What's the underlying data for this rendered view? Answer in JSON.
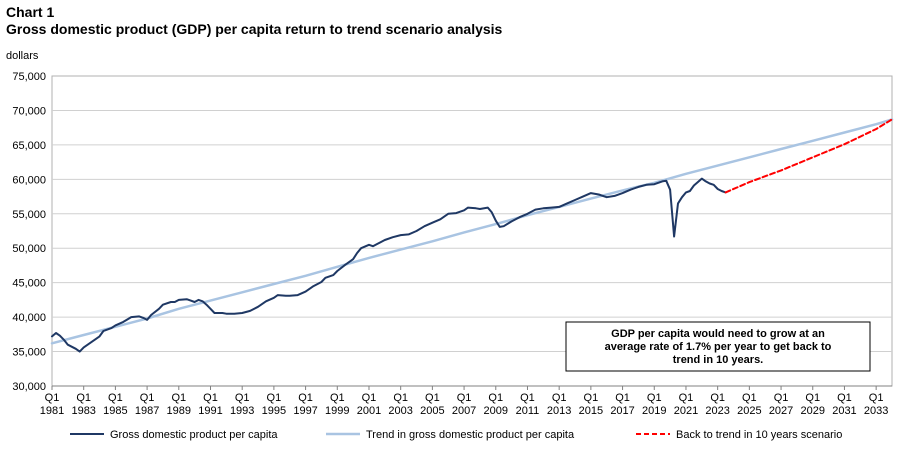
{
  "chart_data": {
    "type": "line",
    "chart_number": "Chart 1",
    "title": "Gross domestic product (GDP) per capita return to trend scenario analysis",
    "ylabel": "dollars",
    "ylim": [
      30000,
      75000
    ],
    "y_ticks": [
      "30,000",
      "35,000",
      "40,000",
      "45,000",
      "50,000",
      "55,000",
      "60,000",
      "65,000",
      "70,000",
      "75,000"
    ],
    "y_tick_values": [
      30000,
      35000,
      40000,
      45000,
      50000,
      55000,
      60000,
      65000,
      70000,
      75000
    ],
    "xlim": [
      1981.0,
      2034.0
    ],
    "x_ticks": [
      {
        "q": "Q1",
        "year": "1981",
        "x": 1981
      },
      {
        "q": "Q1",
        "year": "1983",
        "x": 1983
      },
      {
        "q": "Q1",
        "year": "1985",
        "x": 1985
      },
      {
        "q": "Q1",
        "year": "1987",
        "x": 1987
      },
      {
        "q": "Q1",
        "year": "1989",
        "x": 1989
      },
      {
        "q": "Q1",
        "year": "1991",
        "x": 1991
      },
      {
        "q": "Q1",
        "year": "1993",
        "x": 1993
      },
      {
        "q": "Q1",
        "year": "1995",
        "x": 1995
      },
      {
        "q": "Q1",
        "year": "1997",
        "x": 1997
      },
      {
        "q": "Q1",
        "year": "1999",
        "x": 1999
      },
      {
        "q": "Q1",
        "year": "2001",
        "x": 2001
      },
      {
        "q": "Q1",
        "year": "2003",
        "x": 2003
      },
      {
        "q": "Q1",
        "year": "2005",
        "x": 2005
      },
      {
        "q": "Q1",
        "year": "2007",
        "x": 2007
      },
      {
        "q": "Q1",
        "year": "2009",
        "x": 2009
      },
      {
        "q": "Q1",
        "year": "2011",
        "x": 2011
      },
      {
        "q": "Q1",
        "year": "2013",
        "x": 2013
      },
      {
        "q": "Q1",
        "year": "2015",
        "x": 2015
      },
      {
        "q": "Q1",
        "year": "2017",
        "x": 2017
      },
      {
        "q": "Q1",
        "year": "2019",
        "x": 2019
      },
      {
        "q": "Q1",
        "year": "2021",
        "x": 2021
      },
      {
        "q": "Q1",
        "year": "2023",
        "x": 2023
      },
      {
        "q": "Q1",
        "year": "2025",
        "x": 2025
      },
      {
        "q": "Q1",
        "year": "2027",
        "x": 2027
      },
      {
        "q": "Q1",
        "year": "2029",
        "x": 2029
      },
      {
        "q": "Q1",
        "year": "2031",
        "x": 2031
      },
      {
        "q": "Q1",
        "year": "2033",
        "x": 2033
      }
    ],
    "series": [
      {
        "name": "Gross domestic product per capita",
        "color": "#1f3864",
        "style": "solid",
        "points": [
          [
            1981.0,
            37200
          ],
          [
            1981.25,
            37700
          ],
          [
            1981.5,
            37300
          ],
          [
            1981.75,
            36700
          ],
          [
            1982.0,
            36000
          ],
          [
            1982.5,
            35400
          ],
          [
            1982.75,
            35000
          ],
          [
            1983.0,
            35600
          ],
          [
            1983.5,
            36400
          ],
          [
            1984.0,
            37200
          ],
          [
            1984.25,
            38000
          ],
          [
            1984.75,
            38400
          ],
          [
            1985.0,
            38800
          ],
          [
            1985.5,
            39300
          ],
          [
            1986.0,
            40000
          ],
          [
            1986.5,
            40100
          ],
          [
            1986.75,
            39900
          ],
          [
            1987.0,
            39600
          ],
          [
            1987.25,
            40300
          ],
          [
            1987.75,
            41200
          ],
          [
            1988.0,
            41800
          ],
          [
            1988.5,
            42200
          ],
          [
            1988.75,
            42200
          ],
          [
            1989.0,
            42500
          ],
          [
            1989.5,
            42600
          ],
          [
            1989.75,
            42400
          ],
          [
            1990.0,
            42200
          ],
          [
            1990.25,
            42500
          ],
          [
            1990.5,
            42300
          ],
          [
            1990.75,
            41800
          ],
          [
            1991.0,
            41200
          ],
          [
            1991.25,
            40600
          ],
          [
            1991.75,
            40600
          ],
          [
            1992.0,
            40500
          ],
          [
            1992.5,
            40500
          ],
          [
            1993.0,
            40600
          ],
          [
            1993.5,
            40900
          ],
          [
            1994.0,
            41500
          ],
          [
            1994.5,
            42300
          ],
          [
            1995.0,
            42800
          ],
          [
            1995.25,
            43200
          ],
          [
            1995.75,
            43100
          ],
          [
            1996.0,
            43100
          ],
          [
            1996.5,
            43200
          ],
          [
            1997.0,
            43700
          ],
          [
            1997.5,
            44500
          ],
          [
            1998.0,
            45100
          ],
          [
            1998.25,
            45700
          ],
          [
            1998.75,
            46100
          ],
          [
            1999.0,
            46700
          ],
          [
            1999.5,
            47600
          ],
          [
            2000.0,
            48400
          ],
          [
            2000.25,
            49300
          ],
          [
            2000.5,
            50000
          ],
          [
            2001.0,
            50500
          ],
          [
            2001.25,
            50300
          ],
          [
            2001.5,
            50600
          ],
          [
            2002.0,
            51200
          ],
          [
            2002.5,
            51600
          ],
          [
            2003.0,
            51900
          ],
          [
            2003.5,
            52000
          ],
          [
            2004.0,
            52500
          ],
          [
            2004.5,
            53200
          ],
          [
            2005.0,
            53700
          ],
          [
            2005.5,
            54200
          ],
          [
            2006.0,
            55000
          ],
          [
            2006.5,
            55100
          ],
          [
            2007.0,
            55500
          ],
          [
            2007.25,
            55900
          ],
          [
            2007.75,
            55800
          ],
          [
            2008.0,
            55700
          ],
          [
            2008.5,
            55900
          ],
          [
            2008.75,
            55200
          ],
          [
            2009.0,
            54000
          ],
          [
            2009.25,
            53100
          ],
          [
            2009.5,
            53200
          ],
          [
            2010.0,
            53900
          ],
          [
            2010.5,
            54500
          ],
          [
            2011.0,
            55000
          ],
          [
            2011.5,
            55600
          ],
          [
            2012.0,
            55800
          ],
          [
            2012.5,
            55900
          ],
          [
            2013.0,
            56000
          ],
          [
            2013.5,
            56500
          ],
          [
            2014.0,
            57000
          ],
          [
            2014.5,
            57500
          ],
          [
            2015.0,
            58000
          ],
          [
            2015.5,
            57800
          ],
          [
            2016.0,
            57400
          ],
          [
            2016.5,
            57600
          ],
          [
            2017.0,
            58000
          ],
          [
            2017.5,
            58500
          ],
          [
            2018.0,
            58900
          ],
          [
            2018.5,
            59200
          ],
          [
            2019.0,
            59300
          ],
          [
            2019.5,
            59700
          ],
          [
            2019.75,
            59800
          ],
          [
            2020.0,
            58500
          ],
          [
            2020.25,
            51700
          ],
          [
            2020.5,
            56500
          ],
          [
            2020.75,
            57400
          ],
          [
            2021.0,
            58100
          ],
          [
            2021.25,
            58300
          ],
          [
            2021.5,
            59100
          ],
          [
            2021.75,
            59600
          ],
          [
            2022.0,
            60100
          ],
          [
            2022.25,
            59700
          ],
          [
            2022.5,
            59400
          ],
          [
            2022.75,
            59200
          ],
          [
            2023.0,
            58600
          ],
          [
            2023.25,
            58300
          ],
          [
            2023.5,
            58100
          ]
        ]
      },
      {
        "name": "Trend in gross domestic product per capita",
        "color": "#a9c4e2",
        "style": "solid",
        "points": [
          [
            1981.0,
            36200
          ],
          [
            1983.0,
            37400
          ],
          [
            1985.0,
            38600
          ],
          [
            1987.0,
            39800
          ],
          [
            1989.0,
            41200
          ],
          [
            1991.0,
            42400
          ],
          [
            1993.0,
            43600
          ],
          [
            1995.0,
            44800
          ],
          [
            1997.0,
            46000
          ],
          [
            1999.0,
            47300
          ],
          [
            2001.0,
            48600
          ],
          [
            2003.0,
            49800
          ],
          [
            2005.0,
            51000
          ],
          [
            2007.0,
            52300
          ],
          [
            2009.0,
            53500
          ],
          [
            2011.0,
            54800
          ],
          [
            2013.0,
            56000
          ],
          [
            2015.0,
            57200
          ],
          [
            2017.0,
            58400
          ],
          [
            2019.0,
            59500
          ],
          [
            2021.0,
            60800
          ],
          [
            2023.0,
            62000
          ],
          [
            2025.0,
            63200
          ],
          [
            2027.0,
            64400
          ],
          [
            2029.0,
            65600
          ],
          [
            2031.0,
            66800
          ],
          [
            2033.0,
            68000
          ],
          [
            2034.0,
            68700
          ]
        ]
      },
      {
        "name": "Back to trend in 10 years scenario",
        "color": "#ff0000",
        "style": "dashed",
        "points": [
          [
            2023.5,
            58100
          ],
          [
            2025.0,
            59600
          ],
          [
            2027.0,
            61300
          ],
          [
            2029.0,
            63200
          ],
          [
            2031.0,
            65100
          ],
          [
            2033.0,
            67300
          ],
          [
            2034.0,
            68700
          ]
        ]
      }
    ],
    "annotation": [
      "GDP per capita would need to grow at an",
      "average rate of 1.7% per year to get back to",
      "trend in 10 years."
    ],
    "grid": true,
    "legend": "bottom"
  }
}
